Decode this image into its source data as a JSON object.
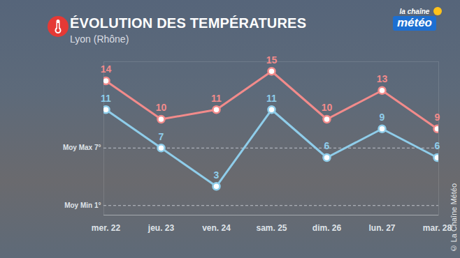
{
  "chart_data": {
    "type": "line",
    "title": "ÉVOLUTION DES TEMPÉRATURES",
    "subtitle": "Lyon (Rhône)",
    "logo": [
      "la chaîne",
      "météo"
    ],
    "source": "© La Chaîne Météo",
    "categories": [
      "mer. 22",
      "jeu. 23",
      "ven. 24",
      "sam. 25",
      "dim. 26",
      "lun. 27",
      "mar. 28"
    ],
    "series": [
      {
        "color": "#f28b8b",
        "values": [
          14,
          10,
          11,
          15,
          10,
          13,
          9
        ]
      },
      {
        "color": "#8fcdea",
        "values": [
          11,
          7,
          3,
          11,
          6,
          9,
          6
        ]
      }
    ],
    "annotations": [
      {
        "value": 7,
        "label": "Moy Max 7°"
      },
      {
        "value": 1,
        "label": "Moy Min 1°"
      }
    ],
    "ylim": [
      0,
      16
    ],
    "yticks": [],
    "grid": false,
    "tick_labels": "x",
    "data_labels": true,
    "marker": "circle"
  }
}
